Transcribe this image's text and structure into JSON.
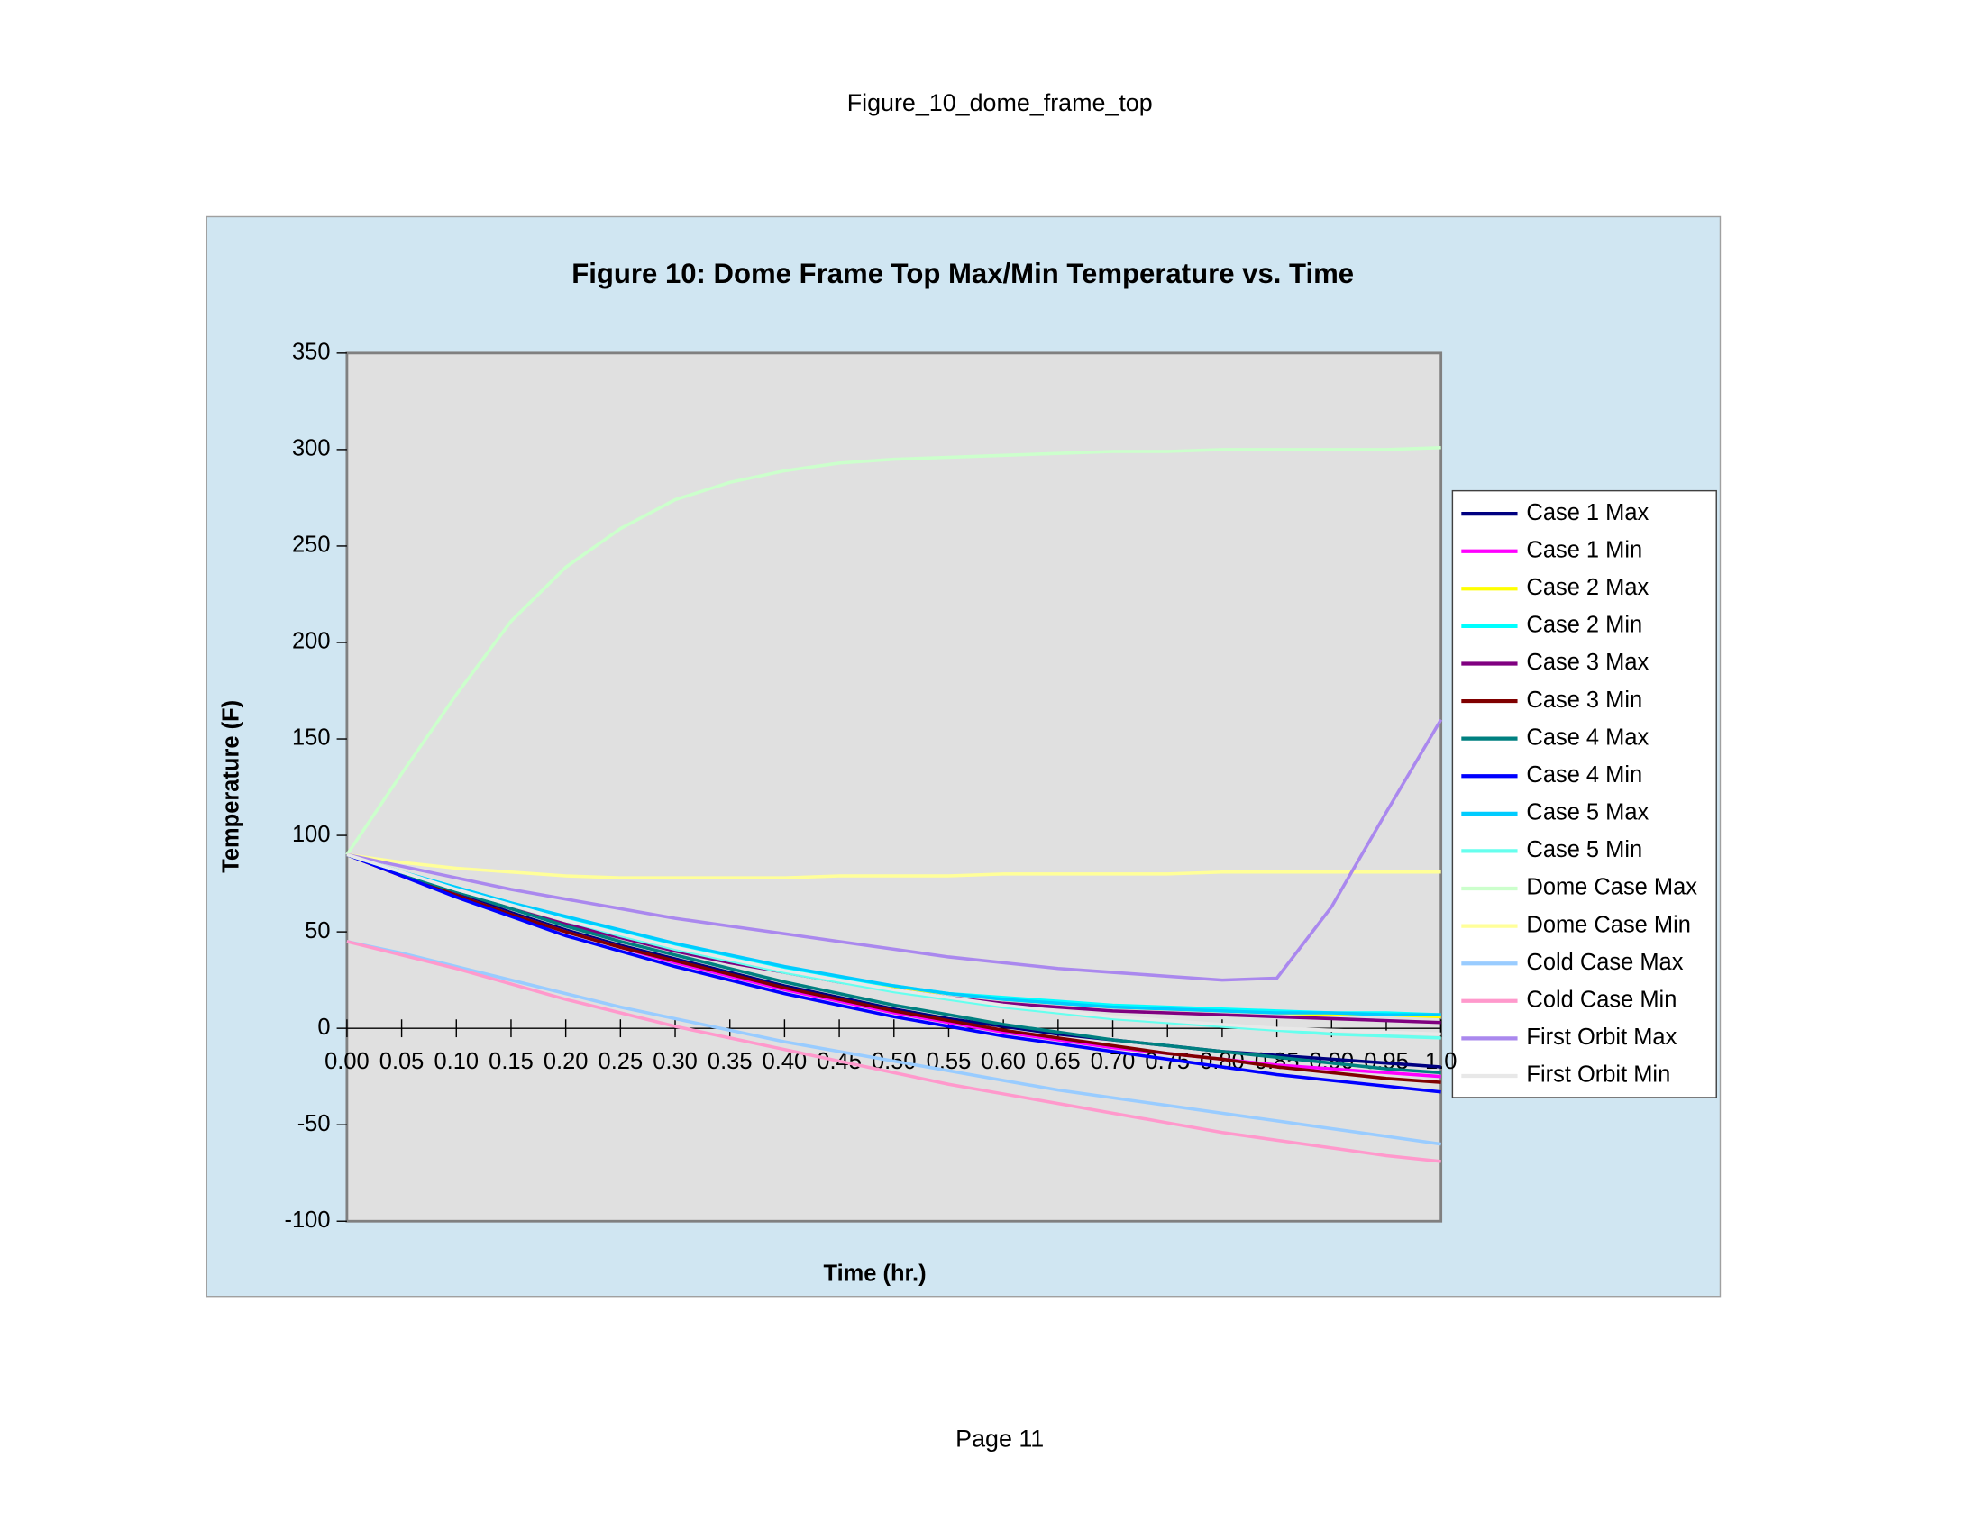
{
  "page_header": "Figure_10_dome_frame_top",
  "page_footer": "Page 11",
  "chart_data": {
    "type": "line",
    "title": "Figure 10: Dome Frame Top Max/Min Temperature vs. Time",
    "x_label": "Time (hr.)",
    "y_label": "Temperature (F)",
    "x": [
      0,
      0.05,
      0.1,
      0.15,
      0.2,
      0.25,
      0.3,
      0.35,
      0.4,
      0.45,
      0.5,
      0.55,
      0.6,
      0.65,
      0.7,
      0.75,
      0.8,
      0.85,
      0.9,
      0.95,
      1
    ],
    "xlim": [
      0,
      1
    ],
    "xticks": [
      {
        "value": 0,
        "label": "0.00"
      },
      {
        "value": 0.05,
        "label": "0.05"
      },
      {
        "value": 0.1,
        "label": "0.10"
      },
      {
        "value": 0.15,
        "label": "0.15"
      },
      {
        "value": 0.2,
        "label": "0.20"
      },
      {
        "value": 0.25,
        "label": "0.25"
      },
      {
        "value": 0.3,
        "label": "0.30"
      },
      {
        "value": 0.35,
        "label": "0.35"
      },
      {
        "value": 0.4,
        "label": "0.40"
      },
      {
        "value": 0.45,
        "label": "0.45"
      },
      {
        "value": 0.5,
        "label": "0.50"
      },
      {
        "value": 0.55,
        "label": "0.55"
      },
      {
        "value": 0.6,
        "label": "0.60"
      },
      {
        "value": 0.65,
        "label": "0.65"
      },
      {
        "value": 0.7,
        "label": "0.70"
      },
      {
        "value": 0.75,
        "label": "0.75"
      },
      {
        "value": 0.8,
        "label": "0.80"
      },
      {
        "value": 0.85,
        "label": "0.85"
      },
      {
        "value": 0.9,
        "label": "0.90"
      },
      {
        "value": 0.95,
        "label": "0.95"
      },
      {
        "value": 1,
        "label": "1.0"
      }
    ],
    "ylim": [
      -100,
      350
    ],
    "yticks": [
      -100,
      -50,
      0,
      50,
      100,
      150,
      200,
      250,
      300,
      350
    ],
    "grid": false,
    "legend": "right",
    "series": [
      {
        "name": "Case 1 Max",
        "color": "#000080",
        "values": [
          90,
          80,
          70,
          60,
          51,
          43,
          36,
          29,
          22,
          16,
          10,
          5,
          1,
          -3,
          -6,
          -9,
          -12,
          -14,
          -16,
          -18,
          -20
        ]
      },
      {
        "name": "Case 1 Min",
        "color": "#ff00ff",
        "values": [
          90,
          79,
          69,
          59,
          50,
          42,
          34,
          27,
          20,
          14,
          8,
          3,
          -2,
          -6,
          -10,
          -13,
          -16,
          -19,
          -21,
          -23,
          -25
        ]
      },
      {
        "name": "Case 2 Max",
        "color": "#ffff00",
        "values": [
          90,
          81,
          72,
          64,
          56,
          49,
          42,
          36,
          31,
          26,
          21,
          18,
          15,
          13,
          11,
          10,
          9,
          8,
          7,
          7,
          6
        ]
      },
      {
        "name": "Case 2 Min",
        "color": "#00ffff",
        "values": [
          90,
          81,
          73,
          65,
          57,
          50,
          43,
          37,
          31,
          26,
          22,
          18,
          16,
          14,
          12,
          11,
          10,
          9,
          8,
          8,
          7
        ]
      },
      {
        "name": "Case 3 Max",
        "color": "#800080",
        "values": [
          90,
          80,
          71,
          62,
          54,
          47,
          40,
          34,
          29,
          24,
          20,
          16,
          13,
          11,
          9,
          8,
          7,
          6,
          5,
          4,
          3
        ]
      },
      {
        "name": "Case 3 Min",
        "color": "#800000",
        "values": [
          90,
          79,
          69,
          59,
          50,
          42,
          35,
          28,
          21,
          15,
          9,
          4,
          -1,
          -5,
          -9,
          -13,
          -16,
          -20,
          -23,
          -26,
          -28
        ]
      },
      {
        "name": "Case 4 Max",
        "color": "#008080",
        "values": [
          90,
          80,
          71,
          62,
          53,
          45,
          38,
          31,
          24,
          18,
          12,
          7,
          2,
          -2,
          -6,
          -9,
          -12,
          -15,
          -18,
          -21,
          -23
        ]
      },
      {
        "name": "Case 4 Min",
        "color": "#0000ff",
        "values": [
          90,
          79,
          68,
          58,
          48,
          40,
          32,
          25,
          18,
          12,
          6,
          1,
          -4,
          -8,
          -12,
          -16,
          -20,
          -24,
          -27,
          -30,
          -33
        ]
      },
      {
        "name": "Case 5 Max",
        "color": "#00ccff",
        "values": [
          90,
          81,
          73,
          65,
          58,
          51,
          44,
          38,
          32,
          27,
          22,
          18,
          15,
          13,
          11,
          10,
          9,
          8,
          8,
          7,
          7
        ]
      },
      {
        "name": "Case 5 Min",
        "color": "#66ffee",
        "values": [
          90,
          81,
          72,
          64,
          56,
          48,
          41,
          35,
          29,
          24,
          19,
          15,
          11,
          8,
          5,
          3,
          1,
          -1,
          -3,
          -4,
          -5
        ]
      },
      {
        "name": "Dome Case Max",
        "color": "#ccffcc",
        "values": [
          90,
          132,
          173,
          211,
          239,
          259,
          274,
          283,
          289,
          293,
          295,
          296,
          297,
          298,
          299,
          299,
          300,
          300,
          300,
          300,
          301
        ]
      },
      {
        "name": "Dome Case Min",
        "color": "#ffff99",
        "values": [
          90,
          86,
          83,
          81,
          79,
          78,
          78,
          78,
          78,
          79,
          79,
          79,
          80,
          80,
          80,
          80,
          81,
          81,
          81,
          81,
          81
        ]
      },
      {
        "name": "Cold Case Max",
        "color": "#99ccff",
        "values": [
          45,
          39,
          32,
          25,
          18,
          11,
          5,
          -1,
          -7,
          -12,
          -17,
          -22,
          -27,
          -32,
          -36,
          -40,
          -44,
          -48,
          -52,
          -56,
          -60
        ]
      },
      {
        "name": "Cold Case Min",
        "color": "#ff99cc",
        "values": [
          45,
          38,
          31,
          23,
          15,
          8,
          1,
          -5,
          -11,
          -17,
          -23,
          -29,
          -34,
          -39,
          -44,
          -49,
          -54,
          -58,
          -62,
          -66,
          -69
        ]
      },
      {
        "name": "First Orbit Max",
        "color": "#aa88ee",
        "values": [
          90,
          84,
          78,
          72,
          67,
          62,
          57,
          53,
          49,
          45,
          41,
          37,
          34,
          31,
          29,
          27,
          25,
          26,
          63,
          112,
          160
        ]
      },
      {
        "name": "First Orbit Min",
        "color": "#e8e8e8",
        "values": [
          90,
          81,
          72,
          64,
          56,
          49,
          42,
          36,
          30,
          25,
          20,
          16,
          12,
          9,
          6,
          4,
          2,
          0,
          -1,
          -2,
          -3
        ]
      }
    ]
  }
}
